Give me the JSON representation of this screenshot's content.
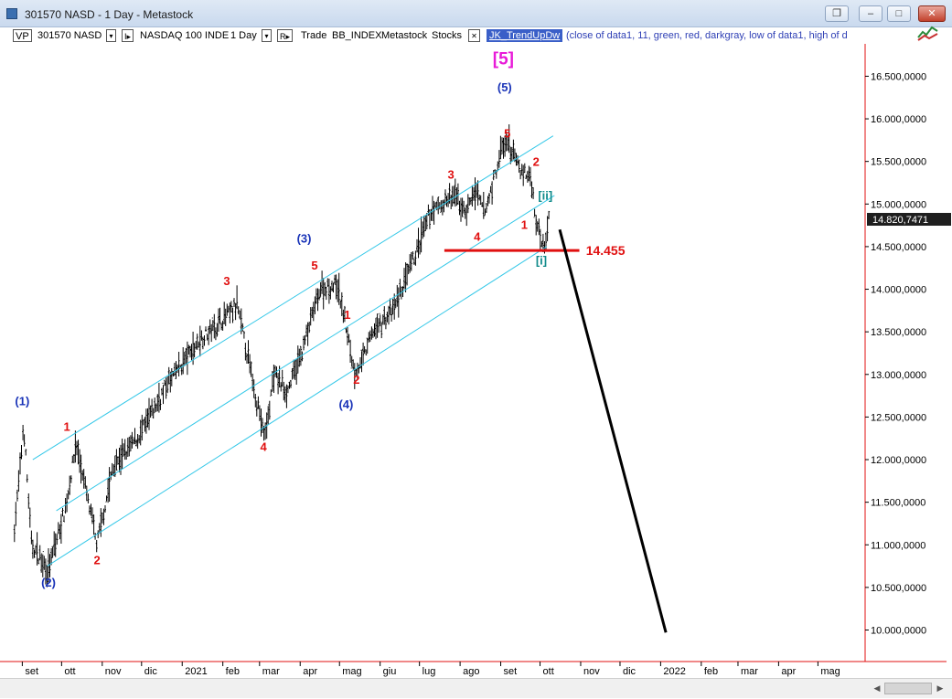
{
  "window": {
    "title": "301570 NASD - 1 Day - Metastock",
    "buttons": {
      "restore_inner": "❐",
      "minimize": "–",
      "maximize": "□",
      "close": "✕"
    }
  },
  "toolbar": {
    "vp_label": "VP",
    "symbol": "301570 NASD",
    "symbol_dropdown": "▾",
    "index_marker": "I▸",
    "index_name": "NASDAQ 100 INDE",
    "period": "1 Day",
    "period_dropdown": "▾",
    "r_marker": "R▸",
    "trade": "Trade",
    "data_source": "BB_INDEX",
    "provider": "Metastock",
    "instrument_type": "Stocks",
    "remove_icon": "✕",
    "indicator": "JK_TrendUpDw",
    "params": "(close of data1,   11,   green,   red,   darkgray,   low of data1,   high of d"
  },
  "chart_data": {
    "type": "line",
    "price_axis_labels": [
      "16.500,0000",
      "16.000,0000",
      "15.500,0000",
      "15.000,0000",
      "14.500,0000",
      "14.000,0000",
      "13.500,0000",
      "13.000,0000",
      "12.500,0000",
      "12.000,0000",
      "11.500,0000",
      "11.000,0000",
      "10.500,0000",
      "10.000,0000"
    ],
    "price_axis_values": [
      16500,
      16000,
      15500,
      15000,
      14500,
      14000,
      13500,
      13000,
      12500,
      12000,
      11500,
      11000,
      10500,
      10000
    ],
    "ylim": [
      9630,
      16880
    ],
    "month_labels": [
      "set",
      "ott",
      "nov",
      "dic",
      "2021",
      "feb",
      "mar",
      "apr",
      "mag",
      "giu",
      "lug",
      "ago",
      "set",
      "ott",
      "nov",
      "dic",
      "2022",
      "feb",
      "mar",
      "apr",
      "mag"
    ],
    "current_price_label": "14.820,7471",
    "current_price": 14820.7471,
    "support_level_label": "14.455",
    "support_level": 14455,
    "price_path": [
      [
        "2020-08-26",
        11200
      ],
      [
        "2020-08-31",
        12000
      ],
      [
        "2020-09-02",
        12420
      ],
      [
        "2020-09-08",
        11000
      ],
      [
        "2020-09-21",
        10700
      ],
      [
        "2020-10-05",
        11500
      ],
      [
        "2020-10-12",
        12200
      ],
      [
        "2020-10-28",
        11000
      ],
      [
        "2020-11-09",
        11900
      ],
      [
        "2020-11-30",
        12300
      ],
      [
        "2020-12-21",
        12900
      ],
      [
        "2021-01-14",
        13400
      ],
      [
        "2021-02-12",
        13800
      ],
      [
        "2021-03-05",
        12250
      ],
      [
        "2021-03-12",
        13000
      ],
      [
        "2021-03-22",
        12800
      ],
      [
        "2021-04-01",
        13200
      ],
      [
        "2021-04-16",
        14000
      ],
      [
        "2021-04-29",
        14050
      ],
      [
        "2021-05-05",
        13650
      ],
      [
        "2021-05-12",
        13050
      ],
      [
        "2021-05-17",
        13100
      ],
      [
        "2021-05-26",
        13500
      ],
      [
        "2021-06-11",
        13750
      ],
      [
        "2021-06-28",
        14400
      ],
      [
        "2021-07-09",
        14900
      ],
      [
        "2021-07-28",
        15100
      ],
      [
        "2021-08-05",
        14900
      ],
      [
        "2021-08-12",
        15150
      ],
      [
        "2021-08-20",
        14900
      ],
      [
        "2021-09-02",
        15650
      ],
      [
        "2021-09-07",
        15700
      ],
      [
        "2021-09-16",
        15400
      ],
      [
        "2021-09-24",
        15300
      ],
      [
        "2021-09-28",
        14800
      ],
      [
        "2021-10-04",
        14500
      ],
      [
        "2021-10-07",
        14800
      ],
      [
        "2021-10-08",
        14820
      ]
    ],
    "channel_lines": [
      {
        "name": "upper",
        "from": [
          "2020-09-09",
          12000
        ],
        "to": [
          "2021-10-11",
          15800
        ]
      },
      {
        "name": "middle",
        "from": [
          "2020-09-27",
          11400
        ],
        "to": [
          "2021-10-12",
          15100
        ]
      },
      {
        "name": "lower",
        "from": [
          "2020-09-20",
          10750
        ],
        "to": [
          "2021-10-06",
          14500
        ]
      }
    ],
    "projection_line": {
      "from": [
        "2021-10-16",
        14700
      ],
      "to": [
        "2022-01-05",
        9970
      ]
    },
    "wave_labels": [
      {
        "text": "(1)",
        "date": "2020-09-01",
        "price": 12640,
        "color": "#1a34b8"
      },
      {
        "text": "(2)",
        "date": "2020-09-21",
        "price": 10510,
        "color": "#1a34b8"
      },
      {
        "text": "1",
        "date": "2020-10-05",
        "price": 12340,
        "color": "#e01010"
      },
      {
        "text": "2",
        "date": "2020-10-28",
        "price": 10770,
        "color": "#e01010"
      },
      {
        "text": "3",
        "date": "2021-02-04",
        "price": 14050,
        "color": "#e01010"
      },
      {
        "text": "4",
        "date": "2021-03-04",
        "price": 12100,
        "color": "#e01010"
      },
      {
        "text": "(3)",
        "date": "2021-04-04",
        "price": 14550,
        "color": "#1a34b8"
      },
      {
        "text": "5",
        "date": "2021-04-12",
        "price": 14230,
        "color": "#e01010"
      },
      {
        "text": "1",
        "date": "2021-05-07",
        "price": 13650,
        "color": "#e01010"
      },
      {
        "text": "2",
        "date": "2021-05-14",
        "price": 12890,
        "color": "#e01010"
      },
      {
        "text": "(4)",
        "date": "2021-05-06",
        "price": 12600,
        "color": "#1a34b8"
      },
      {
        "text": "3",
        "date": "2021-07-25",
        "price": 15300,
        "color": "#e01010"
      },
      {
        "text": "4",
        "date": "2021-08-14",
        "price": 14570,
        "color": "#e01010"
      },
      {
        "text": "[5]",
        "date": "2021-09-03",
        "price": 16640,
        "color": "#e81ad8"
      },
      {
        "text": "(5)",
        "date": "2021-09-04",
        "price": 16320,
        "color": "#1a34b8"
      },
      {
        "text": "5",
        "date": "2021-09-06",
        "price": 15780,
        "color": "#e01010"
      },
      {
        "text": "2",
        "date": "2021-09-28",
        "price": 15450,
        "color": "#e01010"
      },
      {
        "text": "1",
        "date": "2021-09-19",
        "price": 14710,
        "color": "#e01010"
      },
      {
        "text": "[ii]",
        "date": "2021-10-05",
        "price": 15050,
        "color": "#138c8c"
      },
      {
        "text": "[i]",
        "date": "2021-10-02",
        "price": 14290,
        "color": "#138c8c"
      }
    ],
    "colors": {
      "bars": "#000000",
      "channel": "#35c8e8",
      "support": "#e01010",
      "projection": "#000000",
      "axis_divider": "#e01010",
      "price_marker_bg": "#1f1f1f",
      "label_red": "#e01010",
      "label_blue": "#1a34b8",
      "label_magenta": "#e81ad8",
      "label_teal": "#138c8c"
    },
    "grid": false
  }
}
